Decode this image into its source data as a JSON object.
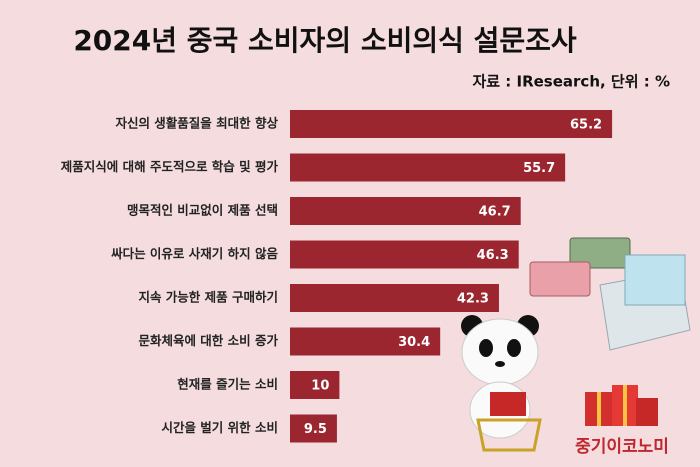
{
  "chart_data": {
    "type": "bar",
    "orientation": "horizontal",
    "title": "2024년 중국 소비자의 소비의식 설문조사",
    "subtitle": "자료 : IResearch, 단위 : %",
    "categories": [
      "자신의 생활품질을 최대한 향상",
      "제품지식에 대해 주도적으로 학습 및 평가",
      "맹목적인 비교없이 제품 선택",
      "싸다는 이유로 사재기 하지 않음",
      "지속 가능한 제품 구매하기",
      "문화체육에 대한 소비 증가",
      "현재를 즐기는 소비",
      "시간을 벌기 위한 소비"
    ],
    "values": [
      65.2,
      55.7,
      46.7,
      46.3,
      42.3,
      30.4,
      10,
      9.5
    ],
    "color": "#9c2630",
    "brand": "중기이코노미"
  }
}
